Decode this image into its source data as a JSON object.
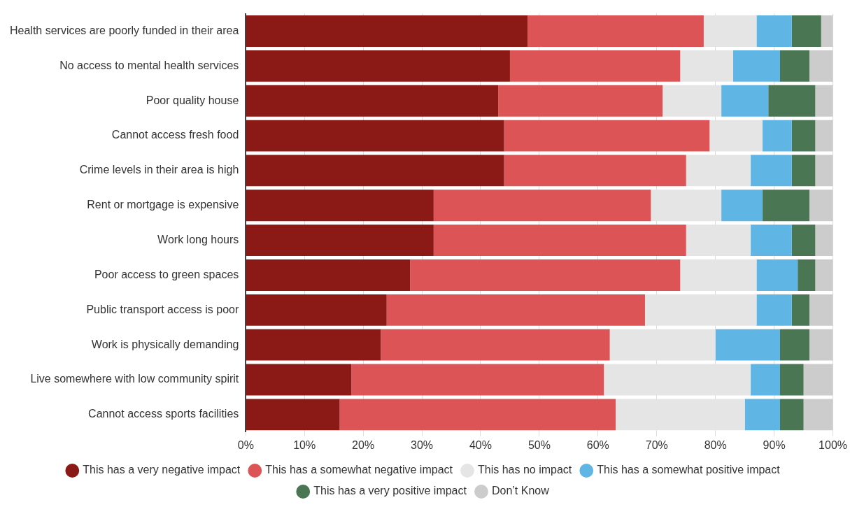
{
  "chart_data": {
    "type": "bar",
    "orientation": "horizontal",
    "stacked": true,
    "categories": [
      "Health services are poorly funded in their area",
      "No access to mental health services",
      "Poor quality house",
      "Cannot access fresh food",
      "Crime levels in their area is high",
      "Rent or mortgage is expensive",
      "Work long hours",
      "Poor access to green spaces",
      "Public transport access is poor",
      "Work is physically demanding",
      "Live somewhere with low community spirit",
      "Cannot access sports facilities"
    ],
    "series": [
      {
        "name": "This has a very negative impact",
        "color": "#8b1a16",
        "values": [
          48,
          45,
          43,
          44,
          44,
          32,
          32,
          28,
          24,
          23,
          18,
          16
        ]
      },
      {
        "name": "This has a somewhat negative impact",
        "color": "#dd5456",
        "values": [
          30,
          29,
          28,
          35,
          31,
          37,
          43,
          46,
          44,
          39,
          43,
          47
        ]
      },
      {
        "name": "This has no impact",
        "color": "#e5e5e5",
        "values": [
          9,
          9,
          10,
          9,
          11,
          12,
          11,
          13,
          19,
          18,
          25,
          22
        ]
      },
      {
        "name": "This has a somewhat positive impact",
        "color": "#5fb6e5",
        "values": [
          6,
          8,
          8,
          5,
          7,
          7,
          7,
          7,
          6,
          11,
          5,
          6
        ]
      },
      {
        "name": "This has a very positive impact",
        "color": "#4a7654",
        "values": [
          5,
          5,
          8,
          4,
          4,
          8,
          4,
          3,
          3,
          5,
          4,
          4
        ]
      },
      {
        "name": "Don’t Know",
        "color": "#cccccc",
        "values": [
          2,
          4,
          3,
          3,
          3,
          4,
          3,
          3,
          4,
          4,
          5,
          5
        ]
      }
    ],
    "xlim": [
      0,
      100
    ],
    "xticks": [
      {
        "value": 0,
        "label": "0%"
      },
      {
        "value": 10,
        "label": "10%"
      },
      {
        "value": 20,
        "label": "20%"
      },
      {
        "value": 30,
        "label": "30%"
      },
      {
        "value": 40,
        "label": "40%"
      },
      {
        "value": 50,
        "label": "50%"
      },
      {
        "value": 60,
        "label": "60%"
      },
      {
        "value": 70,
        "label": "70%"
      },
      {
        "value": 80,
        "label": "80%"
      },
      {
        "value": 90,
        "label": "90%"
      },
      {
        "value": 100,
        "label": "100%"
      }
    ],
    "grid": "x",
    "legend": "bottom"
  }
}
